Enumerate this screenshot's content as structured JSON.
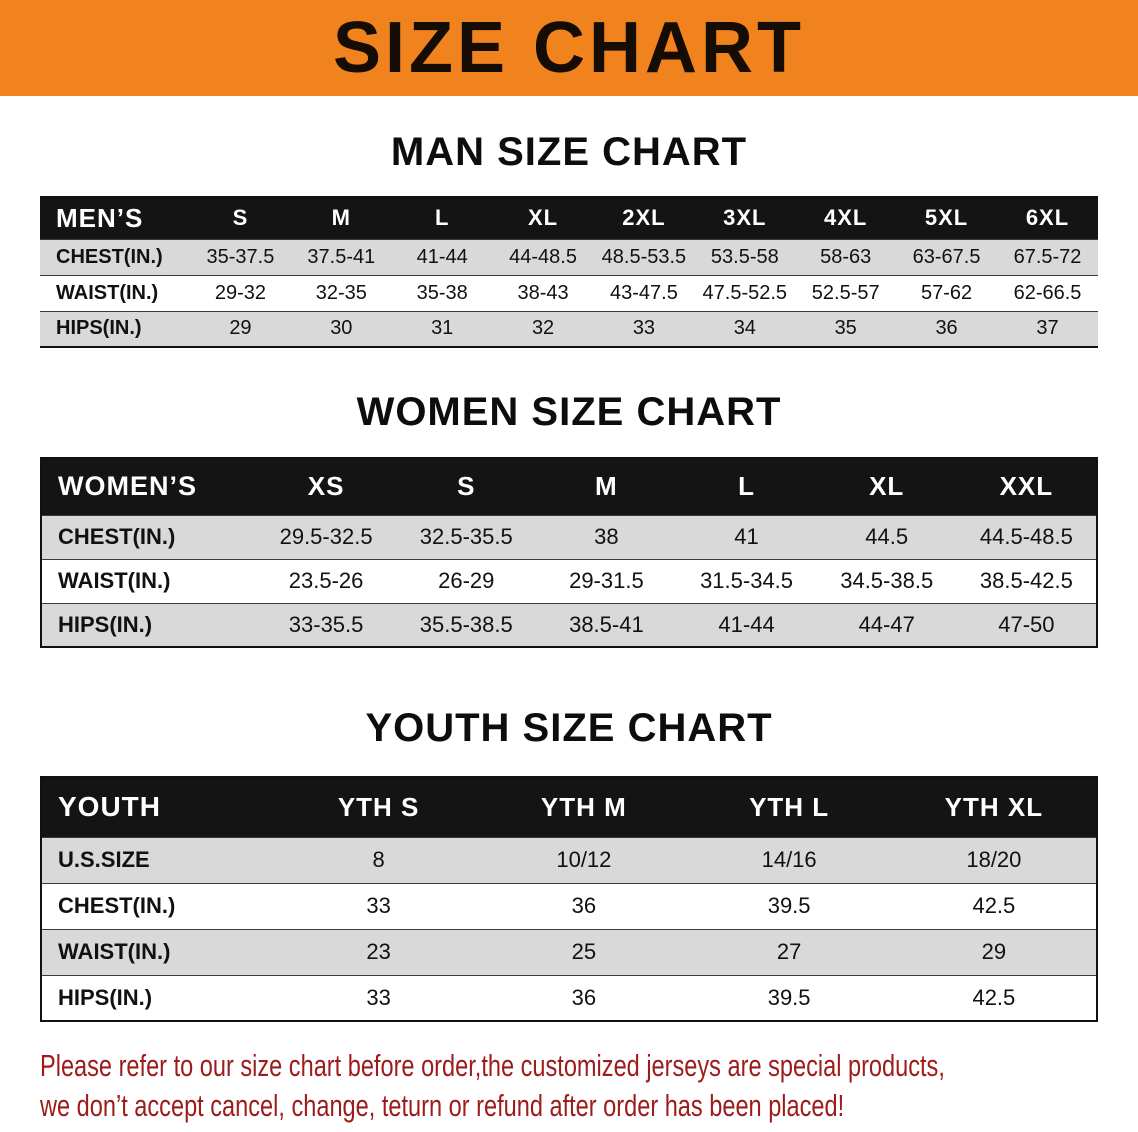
{
  "banner": {
    "title": "SIZE CHART",
    "bg_color": "#F0831E"
  },
  "sections": [
    {
      "id": "men",
      "heading": "MAN SIZE CHART",
      "table": {
        "header": [
          "MEN’S",
          "S",
          "M",
          "L",
          "XL",
          "2XL",
          "3XL",
          "4XL",
          "5XL",
          "6XL"
        ],
        "rows": [
          [
            "CHEST(IN.)",
            "35-37.5",
            "37.5-41",
            "41-44",
            "44-48.5",
            "48.5-53.5",
            "53.5-58",
            "58-63",
            "63-67.5",
            "67.5-72"
          ],
          [
            "WAIST(IN.)",
            "29-32",
            "32-35",
            "35-38",
            "38-43",
            "43-47.5",
            "47.5-52.5",
            "52.5-57",
            "57-62",
            "62-66.5"
          ],
          [
            "HIPS(IN.)",
            "29",
            "30",
            "31",
            "32",
            "33",
            "34",
            "35",
            "36",
            "37"
          ]
        ]
      }
    },
    {
      "id": "women",
      "heading": "WOMEN SIZE CHART",
      "table": {
        "header": [
          "WOMEN’S",
          "XS",
          "S",
          "M",
          "L",
          "XL",
          "XXL"
        ],
        "rows": [
          [
            "CHEST(IN.)",
            "29.5-32.5",
            "32.5-35.5",
            "38",
            "41",
            "44.5",
            "44.5-48.5"
          ],
          [
            "WAIST(IN.)",
            "23.5-26",
            "26-29",
            "29-31.5",
            "31.5-34.5",
            "34.5-38.5",
            "38.5-42.5"
          ],
          [
            "HIPS(IN.)",
            "33-35.5",
            "35.5-38.5",
            "38.5-41",
            "41-44",
            "44-47",
            "47-50"
          ]
        ]
      }
    },
    {
      "id": "youth",
      "heading": "YOUTH SIZE CHART",
      "table": {
        "header": [
          "YOUTH",
          "YTH S",
          "YTH M",
          "YTH L",
          "YTH XL"
        ],
        "rows": [
          [
            "U.S.SIZE",
            "8",
            "10/12",
            "14/16",
            "18/20"
          ],
          [
            "CHEST(IN.)",
            "33",
            "36",
            "39.5",
            "42.5"
          ],
          [
            "WAIST(IN.)",
            "23",
            "25",
            "27",
            "29"
          ],
          [
            "HIPS(IN.)",
            "33",
            "36",
            "39.5",
            "42.5"
          ]
        ]
      }
    }
  ],
  "footer": {
    "line1": "Please refer to our size chart before order,the customized jerseys are special products,",
    "line2": "we don’t accept cancel, change, teturn or refund after order has been placed!",
    "text_color": "#9E1B1B"
  }
}
